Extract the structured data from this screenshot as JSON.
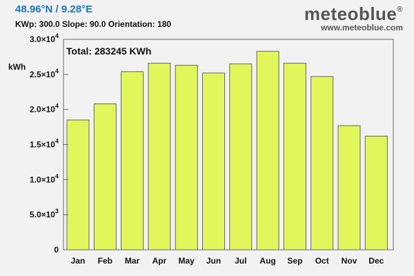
{
  "header": {
    "coords": "48.96°N / 9.28°E",
    "params": "KWp: 300.0  Slope: 90.0  Orientation: 180"
  },
  "brand": {
    "name": "meteoblue",
    "trademark": "®",
    "url": "www.meteoblue.com"
  },
  "chart_data": {
    "type": "bar",
    "title": "",
    "annotation": "Total: 283245 KWh",
    "ylabel": "kWh",
    "xlabel": "",
    "categories": [
      "Jan",
      "Feb",
      "Mar",
      "Apr",
      "May",
      "Jun",
      "Jul",
      "Aug",
      "Sep",
      "Oct",
      "Nov",
      "Dec"
    ],
    "values": [
      18500,
      20800,
      25400,
      26600,
      26300,
      25200,
      26500,
      28300,
      26600,
      24700,
      17700,
      16200
    ],
    "ylim": [
      0,
      30000
    ],
    "yticks": [
      {
        "value": 0,
        "mant": "0",
        "exp": ""
      },
      {
        "value": 5000,
        "mant": "5.0×10",
        "exp": "3"
      },
      {
        "value": 10000,
        "mant": "1.0×10",
        "exp": "4"
      },
      {
        "value": 15000,
        "mant": "1.5×10",
        "exp": "4"
      },
      {
        "value": 20000,
        "mant": "2.0×10",
        "exp": "4"
      },
      {
        "value": 25000,
        "mant": "2.5×10",
        "exp": "4"
      },
      {
        "value": 30000,
        "mant": "3.0×10",
        "exp": "4"
      }
    ],
    "grid": false,
    "colors": {
      "bar_fill": "#e1f65a",
      "bar_stroke": "#666666",
      "plot_bg": "#f2f2f2"
    }
  }
}
